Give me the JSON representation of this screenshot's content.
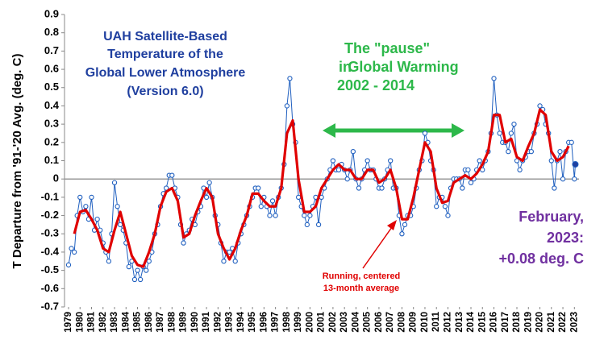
{
  "chart_data": {
    "type": "line",
    "y_label": "T Departure from '91-'20 Avg. (deg. C)",
    "title_lines": [
      "UAH Satellite-Based",
      "Temperature of the",
      "Global Lower Atmosphere",
      "(Version 6.0)"
    ],
    "pause_lines": [
      "The \"pause\"",
      "in",
      "Global Warming",
      "2002 - 2014"
    ],
    "latest_lines": [
      "February,",
      "2023:",
      "+0.08 deg. C"
    ],
    "xlim": [
      1979,
      2023.4
    ],
    "ylim": [
      -0.7,
      0.9
    ],
    "yticks": [
      0.9,
      0.8,
      0.7,
      0.6,
      0.5,
      0.4,
      0.3,
      0.2,
      0.1,
      0,
      -0.1,
      -0.2,
      -0.3,
      -0.4,
      -0.5,
      -0.6,
      -0.7
    ],
    "xticks": [
      1979,
      1980,
      1981,
      1982,
      1983,
      1984,
      1985,
      1986,
      1987,
      1988,
      1989,
      1990,
      1991,
      1992,
      1993,
      1994,
      1995,
      1996,
      1997,
      1998,
      1999,
      2000,
      2001,
      2002,
      2003,
      2004,
      2005,
      2006,
      2007,
      2008,
      2009,
      2010,
      2011,
      2012,
      2013,
      2014,
      2015,
      2016,
      2017,
      2018,
      2019,
      2020,
      2021,
      2022,
      2023
    ],
    "series": [
      {
        "color": "#1f5fbf",
        "markers": true,
        "x": [
          1979,
          1979.25,
          1979.5,
          1979.75,
          1980,
          1980.25,
          1980.5,
          1980.75,
          1981,
          1981.25,
          1981.5,
          1981.75,
          1982,
          1982.25,
          1982.5,
          1982.75,
          1983,
          1983.25,
          1983.5,
          1983.75,
          1984,
          1984.25,
          1984.5,
          1984.75,
          1985,
          1985.25,
          1985.5,
          1985.75,
          1986,
          1986.25,
          1986.5,
          1986.75,
          1987,
          1987.25,
          1987.5,
          1987.75,
          1988,
          1988.25,
          1988.5,
          1988.75,
          1989,
          1989.25,
          1989.5,
          1989.75,
          1990,
          1990.25,
          1990.5,
          1990.75,
          1991,
          1991.25,
          1991.5,
          1991.75,
          1992,
          1992.25,
          1992.5,
          1992.75,
          1993,
          1993.25,
          1993.5,
          1993.75,
          1994,
          1994.25,
          1994.5,
          1994.75,
          1995,
          1995.25,
          1995.5,
          1995.75,
          1996,
          1996.25,
          1996.5,
          1996.75,
          1997,
          1997.25,
          1997.5,
          1997.75,
          1998,
          1998.25,
          1998.5,
          1998.75,
          1999,
          1999.25,
          1999.5,
          1999.75,
          2000,
          2000.25,
          2000.5,
          2000.75,
          2001,
          2001.25,
          2001.5,
          2001.75,
          2002,
          2002.25,
          2002.5,
          2002.75,
          2003,
          2003.25,
          2003.5,
          2003.75,
          2004,
          2004.25,
          2004.5,
          2004.75,
          2005,
          2005.25,
          2005.5,
          2005.75,
          2006,
          2006.25,
          2006.5,
          2006.75,
          2007,
          2007.25,
          2007.5,
          2007.75,
          2008,
          2008.25,
          2008.5,
          2008.75,
          2009,
          2009.25,
          2009.5,
          2009.75,
          2010,
          2010.25,
          2010.5,
          2010.75,
          2011,
          2011.25,
          2011.5,
          2011.75,
          2012,
          2012.25,
          2012.5,
          2012.75,
          2013,
          2013.25,
          2013.5,
          2013.75,
          2014,
          2014.25,
          2014.5,
          2014.75,
          2015,
          2015.25,
          2015.5,
          2015.75,
          2016,
          2016.25,
          2016.5,
          2016.75,
          2017,
          2017.25,
          2017.5,
          2017.75,
          2018,
          2018.25,
          2018.5,
          2018.75,
          2019,
          2019.25,
          2019.5,
          2019.75,
          2020,
          2020.25,
          2020.5,
          2020.75,
          2021,
          2021.25,
          2021.5,
          2021.75,
          2022,
          2022.25,
          2022.5,
          2022.75,
          2023,
          2023.08
        ],
        "values": [
          -0.47,
          -0.38,
          -0.4,
          -0.2,
          -0.1,
          -0.18,
          -0.15,
          -0.22,
          -0.1,
          -0.28,
          -0.22,
          -0.28,
          -0.35,
          -0.4,
          -0.45,
          -0.3,
          -0.02,
          -0.15,
          -0.25,
          -0.28,
          -0.35,
          -0.48,
          -0.45,
          -0.55,
          -0.5,
          -0.55,
          -0.48,
          -0.5,
          -0.45,
          -0.4,
          -0.3,
          -0.25,
          -0.15,
          -0.08,
          -0.05,
          0.02,
          0.02,
          -0.05,
          -0.1,
          -0.25,
          -0.35,
          -0.3,
          -0.28,
          -0.22,
          -0.25,
          -0.18,
          -0.15,
          -0.05,
          -0.1,
          -0.02,
          -0.1,
          -0.2,
          -0.25,
          -0.35,
          -0.45,
          -0.4,
          -0.4,
          -0.38,
          -0.45,
          -0.35,
          -0.3,
          -0.25,
          -0.2,
          -0.15,
          -0.1,
          -0.05,
          -0.05,
          -0.15,
          -0.1,
          -0.15,
          -0.2,
          -0.12,
          -0.2,
          -0.1,
          -0.05,
          0.08,
          0.4,
          0.55,
          0.3,
          0.2,
          -0.1,
          -0.15,
          -0.2,
          -0.25,
          -0.2,
          -0.15,
          -0.1,
          -0.25,
          -0.1,
          -0.05,
          0,
          0.05,
          0.1,
          0.05,
          0.05,
          0.08,
          0.05,
          0,
          0.05,
          0.15,
          0,
          -0.05,
          0,
          0.05,
          0.1,
          0.05,
          0.05,
          0,
          -0.05,
          -0.05,
          0,
          0.05,
          0.1,
          -0.05,
          -0.05,
          -0.2,
          -0.3,
          -0.25,
          -0.2,
          -0.2,
          -0.15,
          -0.05,
          0.05,
          0.1,
          0.25,
          0.2,
          0.1,
          0.05,
          -0.15,
          -0.1,
          -0.1,
          -0.15,
          -0.2,
          -0.05,
          0,
          0,
          0,
          -0.05,
          0.05,
          0.05,
          -0.02,
          0,
          0.05,
          0.1,
          0.05,
          0.1,
          0.15,
          0.25,
          0.55,
          0.35,
          0.25,
          0.2,
          0.2,
          0.15,
          0.25,
          0.3,
          0.1,
          0.05,
          0.1,
          0.12,
          0.15,
          0.15,
          0.25,
          0.3,
          0.4,
          0.38,
          0.3,
          0.25,
          0.1,
          -0.05,
          0.1,
          0.15,
          0,
          0.15,
          0.2,
          0.2,
          0,
          0.08
        ]
      },
      {
        "name": [
          "Running, centered",
          "13-month average"
        ],
        "color": "#e00000",
        "x": [
          1979.5,
          1980,
          1980.5,
          1981,
          1981.5,
          1982,
          1982.5,
          1983,
          1983.5,
          1984,
          1984.5,
          1985,
          1985.5,
          1986,
          1986.5,
          1987,
          1987.5,
          1988,
          1988.5,
          1989,
          1989.5,
          1990,
          1990.5,
          1991,
          1991.5,
          1992,
          1992.5,
          1993,
          1993.5,
          1994,
          1994.5,
          1995,
          1995.5,
          1996,
          1996.5,
          1997,
          1997.5,
          1998,
          1998.5,
          1999,
          1999.5,
          2000,
          2000.5,
          2001,
          2001.5,
          2002,
          2002.5,
          2003,
          2003.5,
          2004,
          2004.5,
          2005,
          2005.5,
          2006,
          2006.5,
          2007,
          2007.5,
          2008,
          2008.5,
          2009,
          2009.5,
          2010,
          2010.5,
          2011,
          2011.5,
          2012,
          2012.5,
          2013,
          2013.5,
          2014,
          2014.5,
          2015,
          2015.5,
          2016,
          2016.5,
          2017,
          2017.5,
          2018,
          2018.5,
          2019,
          2019.5,
          2020,
          2020.5,
          2021,
          2021.5,
          2022,
          2022.5
        ],
        "values": [
          -0.3,
          -0.18,
          -0.17,
          -0.22,
          -0.28,
          -0.38,
          -0.4,
          -0.28,
          -0.18,
          -0.3,
          -0.42,
          -0.47,
          -0.48,
          -0.4,
          -0.3,
          -0.15,
          -0.07,
          -0.05,
          -0.12,
          -0.32,
          -0.3,
          -0.2,
          -0.12,
          -0.05,
          -0.1,
          -0.3,
          -0.38,
          -0.44,
          -0.38,
          -0.28,
          -0.2,
          -0.08,
          -0.08,
          -0.12,
          -0.15,
          -0.15,
          -0.05,
          0.25,
          0.32,
          0,
          -0.18,
          -0.18,
          -0.15,
          -0.05,
          0,
          0.05,
          0.08,
          0.05,
          0.05,
          0,
          0,
          0.05,
          0.05,
          -0.02,
          0,
          0.05,
          -0.05,
          -0.22,
          -0.22,
          -0.1,
          0.05,
          0.2,
          0.15,
          -0.05,
          -0.13,
          -0.12,
          -0.02,
          0,
          0.02,
          0,
          0.03,
          0.08,
          0.15,
          0.35,
          0.35,
          0.2,
          0.22,
          0.12,
          0.1,
          0.18,
          0.25,
          0.38,
          0.35,
          0.15,
          0.1,
          0.12,
          0.18
        ]
      }
    ]
  }
}
